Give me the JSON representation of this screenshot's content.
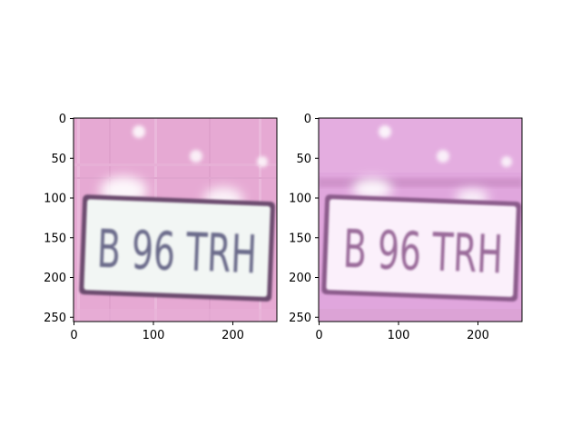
{
  "figure": {
    "background": "#ffffff"
  },
  "panels": [
    {
      "id": "left",
      "plate_text": "B 96 TRH",
      "colors": {
        "background": "#e6a9d3",
        "plate": "#f2f6f4",
        "plate_border": "#6b4a6d",
        "text": "#6a6b8a",
        "glare": "#ffffff"
      },
      "x_ticks": [
        "0",
        "100",
        "200"
      ],
      "y_ticks": [
        "0",
        "50",
        "100",
        "150",
        "200",
        "250"
      ]
    },
    {
      "id": "right",
      "plate_text": "B 96 TRH",
      "colors": {
        "background": "#e0a6dd",
        "plate": "#fbf0fb",
        "plate_border": "#8a5a8a",
        "text": "#9a6a9a",
        "glare": "#ffffff"
      },
      "x_ticks": [
        "0",
        "100",
        "200"
      ],
      "y_ticks": [
        "0",
        "50",
        "100",
        "150",
        "200",
        "250"
      ]
    }
  ]
}
